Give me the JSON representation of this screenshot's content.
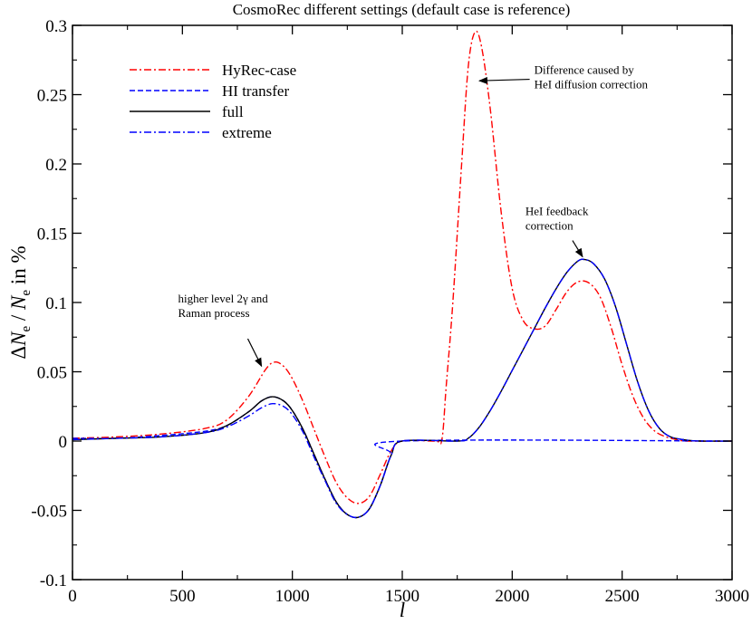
{
  "chart_data": {
    "type": "line",
    "title": "CosmoRec different settings (default case is reference)",
    "xlabel": "l",
    "ylabel": "ΔNe / Ne in %",
    "xlim": [
      0,
      3000
    ],
    "ylim": [
      -0.1,
      0.3
    ],
    "x_ticks": [
      0,
      500,
      1000,
      1500,
      2000,
      2500,
      3000
    ],
    "y_ticks": [
      -0.1,
      -0.05,
      0,
      0.05,
      0.1,
      0.15,
      0.2,
      0.25,
      0.3
    ],
    "x_tick_labels": [
      "0",
      "500",
      "1000",
      "1500",
      "2000",
      "2500",
      "3000"
    ],
    "y_tick_labels": [
      "-0.1",
      "-0.05",
      "0",
      "0.05",
      "0.1",
      "0.15",
      "0.2",
      "0.25",
      "0.3"
    ],
    "grid": false,
    "legend_position": "top-left",
    "series": [
      {
        "name": "HyRec-case",
        "color": "#ff0000",
        "dash": "dash-dot",
        "points": [
          [
            0,
            0.002
          ],
          [
            200,
            0.003
          ],
          [
            400,
            0.005
          ],
          [
            600,
            0.009
          ],
          [
            700,
            0.015
          ],
          [
            800,
            0.032
          ],
          [
            880,
            0.052
          ],
          [
            920,
            0.057
          ],
          [
            960,
            0.054
          ],
          [
            1000,
            0.045
          ],
          [
            1050,
            0.028
          ],
          [
            1100,
            0.008
          ],
          [
            1150,
            -0.012
          ],
          [
            1200,
            -0.03
          ],
          [
            1250,
            -0.041
          ],
          [
            1300,
            -0.045
          ],
          [
            1350,
            -0.04
          ],
          [
            1400,
            -0.024
          ],
          [
            1450,
            -0.007
          ],
          [
            1500,
            0
          ],
          [
            1650,
            0
          ],
          [
            1680,
            0.001
          ],
          [
            1700,
            0.04
          ],
          [
            1730,
            0.1
          ],
          [
            1770,
            0.2
          ],
          [
            1800,
            0.27
          ],
          [
            1830,
            0.295
          ],
          [
            1860,
            0.285
          ],
          [
            1900,
            0.24
          ],
          [
            1950,
            0.165
          ],
          [
            2000,
            0.11
          ],
          [
            2050,
            0.087
          ],
          [
            2100,
            0.081
          ],
          [
            2150,
            0.083
          ],
          [
            2200,
            0.095
          ],
          [
            2250,
            0.108
          ],
          [
            2300,
            0.115
          ],
          [
            2350,
            0.114
          ],
          [
            2400,
            0.104
          ],
          [
            2450,
            0.082
          ],
          [
            2500,
            0.055
          ],
          [
            2550,
            0.032
          ],
          [
            2600,
            0.016
          ],
          [
            2650,
            0.007
          ],
          [
            2700,
            0.003
          ],
          [
            2750,
            0.001
          ],
          [
            2800,
            0
          ],
          [
            3000,
            0
          ]
        ]
      },
      {
        "name": "HI transfer",
        "color": "#0000ff",
        "dash": "dashed",
        "points": [
          [
            0,
            0.002
          ],
          [
            200,
            0.002
          ],
          [
            400,
            0.004
          ],
          [
            600,
            0.007
          ],
          [
            700,
            0.011
          ],
          [
            800,
            0.021
          ],
          [
            860,
            0.029
          ],
          [
            910,
            0.032
          ],
          [
            960,
            0.029
          ],
          [
            1000,
            0.022
          ],
          [
            1050,
            0.008
          ],
          [
            1100,
            -0.01
          ],
          [
            1150,
            -0.028
          ],
          [
            1200,
            -0.044
          ],
          [
            1250,
            -0.053
          ],
          [
            1300,
            -0.055
          ],
          [
            1350,
            -0.049
          ],
          [
            1400,
            -0.032
          ],
          [
            1450,
            -0.01
          ],
          [
            1500,
            0
          ],
          [
            3000,
            0
          ]
        ]
      },
      {
        "name": "full",
        "color": "#000000",
        "dash": "solid",
        "points": [
          [
            0,
            0.001
          ],
          [
            200,
            0.002
          ],
          [
            400,
            0.003
          ],
          [
            600,
            0.006
          ],
          [
            700,
            0.011
          ],
          [
            800,
            0.021
          ],
          [
            860,
            0.029
          ],
          [
            910,
            0.032
          ],
          [
            960,
            0.029
          ],
          [
            1000,
            0.022
          ],
          [
            1050,
            0.008
          ],
          [
            1100,
            -0.01
          ],
          [
            1150,
            -0.028
          ],
          [
            1200,
            -0.044
          ],
          [
            1250,
            -0.053
          ],
          [
            1300,
            -0.055
          ],
          [
            1350,
            -0.049
          ],
          [
            1400,
            -0.032
          ],
          [
            1450,
            -0.01
          ],
          [
            1500,
            0
          ],
          [
            1750,
            0
          ],
          [
            1800,
            0.002
          ],
          [
            1850,
            0.01
          ],
          [
            1900,
            0.022
          ],
          [
            1950,
            0.036
          ],
          [
            2000,
            0.051
          ],
          [
            2050,
            0.066
          ],
          [
            2100,
            0.081
          ],
          [
            2150,
            0.096
          ],
          [
            2200,
            0.11
          ],
          [
            2250,
            0.122
          ],
          [
            2300,
            0.13
          ],
          [
            2330,
            0.131
          ],
          [
            2370,
            0.128
          ],
          [
            2420,
            0.117
          ],
          [
            2470,
            0.097
          ],
          [
            2520,
            0.07
          ],
          [
            2570,
            0.043
          ],
          [
            2620,
            0.022
          ],
          [
            2670,
            0.009
          ],
          [
            2720,
            0.003
          ],
          [
            2780,
            0.001
          ],
          [
            2850,
            0
          ],
          [
            3000,
            0
          ]
        ]
      },
      {
        "name": "extreme",
        "color": "#0000ff",
        "dash": "dash-dot",
        "points": [
          [
            0,
            0.001
          ],
          [
            200,
            0.002
          ],
          [
            400,
            0.003
          ],
          [
            600,
            0.006
          ],
          [
            700,
            0.01
          ],
          [
            800,
            0.018
          ],
          [
            860,
            0.024
          ],
          [
            910,
            0.027
          ],
          [
            960,
            0.025
          ],
          [
            1000,
            0.019
          ],
          [
            1050,
            0.006
          ],
          [
            1100,
            -0.012
          ],
          [
            1150,
            -0.029
          ],
          [
            1200,
            -0.045
          ],
          [
            1250,
            -0.053
          ],
          [
            1300,
            -0.055
          ],
          [
            1350,
            -0.049
          ],
          [
            1400,
            -0.032
          ],
          [
            1450,
            -0.01
          ],
          [
            1500,
            0
          ],
          [
            1750,
            0
          ],
          [
            1800,
            0.002
          ],
          [
            1850,
            0.01
          ],
          [
            1900,
            0.022
          ],
          [
            1950,
            0.036
          ],
          [
            2000,
            0.051
          ],
          [
            2050,
            0.066
          ],
          [
            2100,
            0.081
          ],
          [
            2150,
            0.096
          ],
          [
            2200,
            0.11
          ],
          [
            2250,
            0.122
          ],
          [
            2300,
            0.13
          ],
          [
            2330,
            0.131
          ],
          [
            2370,
            0.128
          ],
          [
            2420,
            0.117
          ],
          [
            2470,
            0.097
          ],
          [
            2520,
            0.07
          ],
          [
            2570,
            0.043
          ],
          [
            2620,
            0.022
          ],
          [
            2670,
            0.009
          ],
          [
            2720,
            0.003
          ],
          [
            2780,
            0.001
          ],
          [
            2850,
            0
          ],
          [
            3000,
            0
          ]
        ]
      }
    ],
    "annotations": [
      {
        "lines": [
          "Difference caused by",
          "HeI diffusion correction"
        ],
        "text_at": [
          2100,
          0.265
        ],
        "arrow_to": [
          1850,
          0.26
        ]
      },
      {
        "lines": [
          "HeI feedback",
          "correction"
        ],
        "text_at": [
          2060,
          0.163
        ],
        "arrow_to": [
          2320,
          0.133
        ]
      },
      {
        "lines": [
          "higher level 2γ and",
          "Raman process"
        ],
        "text_at": [
          480,
          0.1
        ],
        "arrow_to": [
          860,
          0.054
        ]
      }
    ]
  }
}
